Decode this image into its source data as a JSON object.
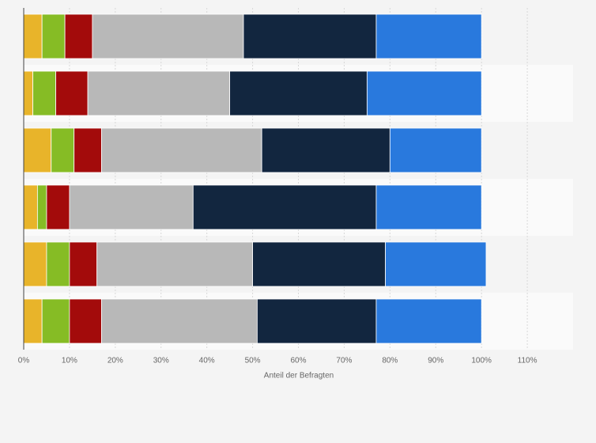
{
  "chart_data": {
    "type": "stacked_barh",
    "categories": [
      null,
      null,
      null,
      null,
      null,
      null
    ],
    "x_label": "Anteil der Befragten",
    "xlim": [
      0,
      120
    ],
    "xticks": [
      {
        "value": 0,
        "label": "0%"
      },
      {
        "value": 10,
        "label": "10%"
      },
      {
        "value": 20,
        "label": "20%"
      },
      {
        "value": 30,
        "label": "30%"
      },
      {
        "value": 40,
        "label": "40%"
      },
      {
        "value": 50,
        "label": "50%"
      },
      {
        "value": 60,
        "label": "60%"
      },
      {
        "value": 70,
        "label": "70%"
      },
      {
        "value": 80,
        "label": "80%"
      },
      {
        "value": 90,
        "label": "90%"
      },
      {
        "value": 100,
        "label": "100%"
      },
      {
        "value": 110,
        "label": "110%"
      }
    ],
    "grid": true,
    "series": [
      {
        "color": "#e8b42a",
        "values": [
          4,
          2,
          6,
          3,
          5,
          4
        ]
      },
      {
        "color": "#86bc25",
        "values": [
          5,
          5,
          5,
          2,
          5,
          6
        ]
      },
      {
        "color": "#a30b0b",
        "values": [
          6,
          7,
          6,
          5,
          6,
          7
        ]
      },
      {
        "color": "#b8b8b8",
        "values": [
          33,
          31,
          35,
          27,
          34,
          34
        ]
      },
      {
        "color": "#12263f",
        "values": [
          29,
          30,
          28,
          40,
          29,
          26
        ]
      },
      {
        "color": "#2979dd",
        "values": [
          23,
          25,
          20,
          23,
          22,
          23
        ]
      }
    ]
  }
}
